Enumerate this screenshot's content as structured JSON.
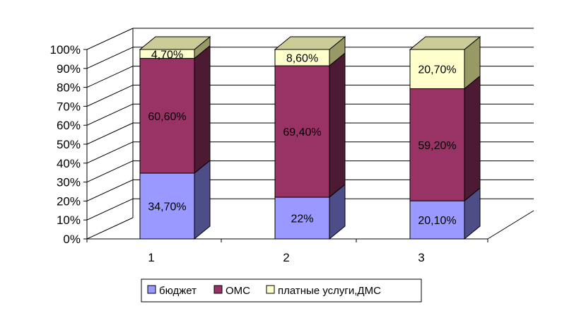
{
  "chart_data": {
    "type": "bar",
    "stacked": "percent",
    "three_d": true,
    "categories": [
      "1",
      "2",
      "3"
    ],
    "series": [
      {
        "name": "бюджет",
        "values": [
          34.7,
          22,
          20.1
        ],
        "labels": [
          "34,70%",
          "22%",
          "20,10%"
        ]
      },
      {
        "name": "ОМС",
        "values": [
          60.6,
          69.4,
          59.2
        ],
        "labels": [
          "60,60%",
          "69,40%",
          "59,20%"
        ]
      },
      {
        "name": "платные услуги,ДМС",
        "values": [
          4.7,
          8.6,
          20.7
        ],
        "labels": [
          "4,70%",
          "8,60%",
          "20,70%"
        ]
      }
    ],
    "yaxis": {
      "ticks": [
        0,
        10,
        20,
        30,
        40,
        50,
        60,
        70,
        80,
        90,
        100
      ],
      "tick_labels": [
        "0%",
        "10%",
        "20%",
        "30%",
        "40%",
        "50%",
        "60%",
        "70%",
        "80%",
        "90%",
        "100%"
      ]
    },
    "ylim": [
      0,
      100
    ],
    "grid": true,
    "legend_position": "bottom",
    "colors": {
      "бюджет": {
        "front": "#9999ff",
        "side": "#4d4d88",
        "top": "#7a7acc"
      },
      "ОМС": {
        "front": "#993366",
        "side": "#4d1a33",
        "top": "#7a2952"
      },
      "платные услуги,ДМС": {
        "front": "#ffffcc",
        "side": "#999966",
        "top": "#cccc99"
      }
    }
  }
}
